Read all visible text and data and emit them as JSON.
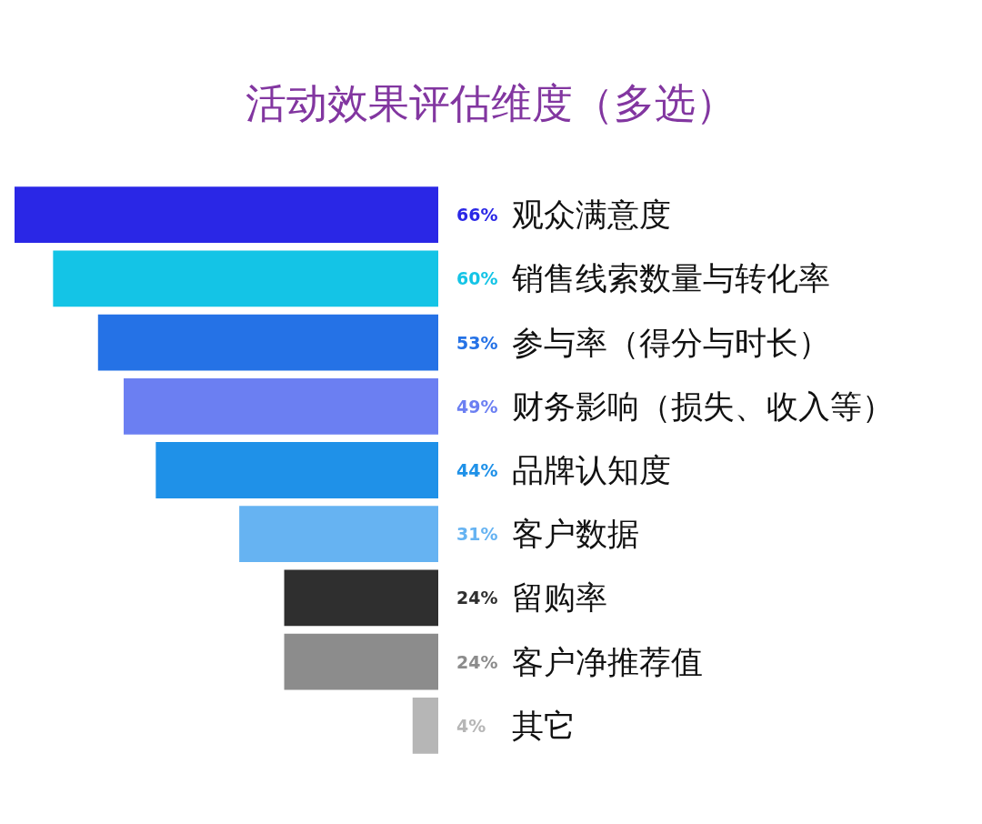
{
  "chart_data": {
    "type": "bar",
    "title": "活动效果评估维度（多选）",
    "orientation": "horizontal",
    "categories": [
      "观众满意度",
      "销售线索数量与转化率",
      "参与率（得分与时长）",
      "财务影响（损失、收入等）",
      "品牌认知度",
      "客户数据",
      "留购率",
      "客户净推荐值",
      "其它"
    ],
    "values": [
      66,
      60,
      53,
      49,
      44,
      31,
      24,
      24,
      4
    ],
    "value_labels": [
      "66%",
      "60%",
      "53%",
      "49%",
      "44%",
      "31%",
      "24%",
      "24%",
      "4%"
    ],
    "colors": [
      "#2a27e6",
      "#14c4e6",
      "#2572e6",
      "#6b7ff2",
      "#1f91e8",
      "#66b3f2",
      "#2f2f2f",
      "#8c8c8c",
      "#b6b6b6"
    ],
    "xlim": [
      66,
      0
    ]
  }
}
